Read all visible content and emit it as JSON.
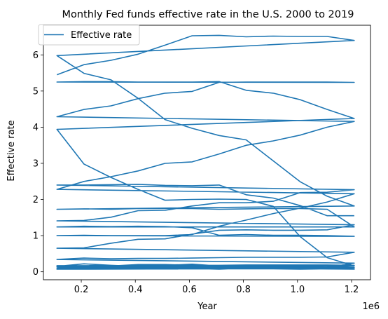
{
  "chart_data": {
    "type": "line",
    "title": "Monthly Fed funds effective rate in the U.S. 2000 to 2019",
    "xlabel": "Year",
    "ylabel": "Effective rate",
    "x_offset_label": "1e6",
    "xlim": [
      60000,
      1270000
    ],
    "ylim": [
      -0.22,
      6.82
    ],
    "x_ticks": [
      200000,
      400000,
      600000,
      800000,
      1000000,
      1200000
    ],
    "x_tick_labels": [
      "0.2",
      "0.4",
      "0.6",
      "0.8",
      "1.0",
      "1.2"
    ],
    "y_ticks": [
      0,
      1,
      2,
      3,
      4,
      5,
      6
    ],
    "y_tick_labels": [
      "0",
      "1",
      "2",
      "3",
      "4",
      "5",
      "6"
    ],
    "grid": false,
    "legend": {
      "placement": "top-left"
    },
    "line_color": "#1f77b4",
    "series": [
      {
        "name": "Effective rate",
        "x": [
          110000,
          210000,
          310000,
          410000,
          510000,
          610000,
          710000,
          810000,
          910000,
          1010000,
          1110000,
          1210000,
          110000,
          210000,
          310000,
          410000,
          510000,
          610000,
          710000,
          810000,
          910000,
          1010000,
          1110000,
          1210000,
          110000,
          210000,
          310000,
          410000,
          510000,
          610000,
          710000,
          810000,
          910000,
          1010000,
          1110000,
          1210000,
          110000,
          210000,
          310000,
          410000,
          510000,
          610000,
          710000,
          810000,
          910000,
          1010000,
          1110000,
          1210000,
          110000,
          210000,
          310000,
          410000,
          510000,
          610000,
          710000,
          810000,
          910000,
          1010000,
          1110000,
          1210000,
          110000,
          210000,
          310000,
          410000,
          510000,
          610000,
          710000,
          810000,
          910000,
          1010000,
          1110000,
          1210000,
          110000,
          210000,
          310000,
          410000,
          510000,
          610000,
          710000,
          810000,
          910000,
          1010000,
          1110000,
          1210000,
          110000,
          210000,
          310000,
          410000,
          510000,
          610000,
          710000,
          810000,
          910000,
          1010000,
          1110000,
          1210000,
          110000,
          210000,
          310000,
          410000,
          510000,
          610000,
          710000,
          810000,
          910000,
          1010000,
          1110000,
          1210000,
          110000,
          210000,
          310000,
          410000,
          510000,
          610000,
          710000,
          810000,
          910000,
          1010000,
          1110000,
          1210000,
          110000,
          210000,
          310000,
          410000,
          510000,
          610000,
          710000,
          810000,
          910000,
          1010000,
          1110000,
          1210000,
          110000,
          210000,
          310000,
          410000,
          510000,
          610000,
          710000,
          810000,
          910000,
          1010000,
          1110000,
          1210000,
          110000,
          210000,
          310000,
          410000,
          510000,
          610000,
          710000,
          810000,
          910000,
          1010000,
          1110000,
          1210000,
          110000,
          210000,
          310000,
          410000,
          510000,
          610000,
          710000,
          810000,
          910000,
          1010000,
          1110000,
          1210000,
          110000,
          210000,
          310000,
          410000,
          510000,
          610000,
          710000,
          810000,
          910000,
          1010000,
          1110000,
          1210000,
          110000,
          210000,
          310000,
          410000,
          510000,
          610000,
          710000,
          810000,
          910000,
          1010000,
          1110000,
          1210000,
          110000,
          210000,
          310000,
          410000,
          510000,
          610000,
          710000,
          810000,
          910000,
          1010000,
          1110000,
          1210000,
          110000,
          210000,
          310000,
          410000,
          510000,
          610000,
          710000,
          810000,
          910000,
          1010000,
          1110000,
          1210000,
          110000,
          210000,
          310000,
          410000,
          510000,
          610000,
          710000,
          810000,
          910000,
          1010000,
          1110000,
          1210000,
          110000,
          210000,
          310000,
          410000,
          510000,
          610000,
          710000,
          810000,
          910000,
          1010000,
          1110000,
          1210000
        ],
        "y": [
          5.45,
          5.73,
          5.85,
          6.02,
          6.27,
          6.53,
          6.54,
          6.5,
          6.52,
          6.51,
          6.51,
          6.4,
          5.98,
          5.49,
          5.31,
          4.8,
          4.21,
          3.97,
          3.77,
          3.65,
          3.07,
          2.49,
          2.09,
          1.82,
          1.73,
          1.74,
          1.73,
          1.75,
          1.75,
          1.75,
          1.73,
          1.74,
          1.75,
          1.75,
          1.73,
          1.24,
          1.24,
          1.26,
          1.25,
          1.26,
          1.25,
          1.22,
          1.01,
          1.03,
          1.01,
          1.01,
          1.0,
          0.98,
          1.0,
          1.01,
          1.0,
          1.0,
          1.0,
          1.03,
          1.26,
          1.43,
          1.61,
          1.76,
          1.93,
          2.16,
          2.28,
          2.5,
          2.63,
          2.79,
          3.0,
          3.04,
          3.26,
          3.5,
          3.62,
          3.78,
          4.0,
          4.16,
          4.29,
          4.49,
          4.59,
          4.79,
          4.94,
          4.99,
          5.24,
          5.25,
          5.25,
          5.25,
          5.25,
          5.24,
          5.25,
          5.26,
          5.26,
          5.25,
          5.25,
          5.25,
          5.26,
          5.02,
          4.94,
          4.76,
          4.49,
          4.24,
          3.94,
          2.98,
          2.61,
          2.28,
          1.98,
          2.0,
          2.01,
          2.0,
          1.81,
          0.97,
          0.39,
          0.16,
          0.15,
          0.22,
          0.18,
          0.15,
          0.18,
          0.21,
          0.16,
          0.16,
          0.15,
          0.12,
          0.12,
          0.16,
          0.11,
          0.13,
          0.16,
          0.2,
          0.2,
          0.18,
          0.18,
          0.19,
          0.19,
          0.19,
          0.19,
          0.18,
          0.17,
          0.16,
          0.14,
          0.1,
          0.09,
          0.09,
          0.07,
          0.1,
          0.08,
          0.07,
          0.08,
          0.07,
          0.14,
          0.1,
          0.13,
          0.14,
          0.16,
          0.16,
          0.16,
          0.13,
          0.14,
          0.16,
          0.16,
          0.16,
          0.08,
          0.1,
          0.09,
          0.09,
          0.09,
          0.09,
          0.09,
          0.08,
          0.08,
          0.09,
          0.08,
          0.09,
          0.07,
          0.07,
          0.08,
          0.09,
          0.09,
          0.1,
          0.09,
          0.09,
          0.09,
          0.09,
          0.09,
          0.12,
          0.11,
          0.11,
          0.11,
          0.12,
          0.12,
          0.13,
          0.13,
          0.14,
          0.14,
          0.12,
          0.12,
          0.24,
          0.34,
          0.38,
          0.36,
          0.37,
          0.37,
          0.38,
          0.39,
          0.4,
          0.4,
          0.4,
          0.41,
          0.54,
          0.65,
          0.66,
          0.79,
          0.9,
          0.91,
          1.04,
          1.15,
          1.16,
          1.15,
          1.15,
          1.16,
          1.3,
          1.41,
          1.42,
          1.51,
          1.69,
          1.7,
          1.82,
          1.91,
          1.91,
          1.95,
          2.19,
          2.2,
          2.27,
          2.4,
          2.4,
          2.41,
          2.42,
          2.39,
          2.38,
          2.4,
          2.13,
          2.04,
          1.83,
          1.55,
          1.55
        ]
      }
    ]
  }
}
